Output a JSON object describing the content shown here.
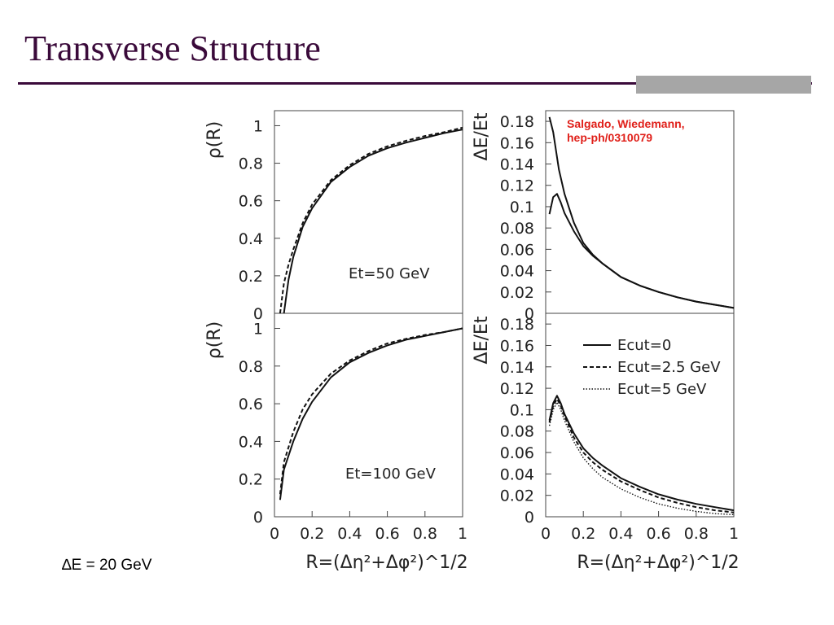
{
  "slide": {
    "title": "Transverse Structure",
    "footnote": "∆E = 20 GeV"
  },
  "chart_data": [
    {
      "type": "line",
      "ylabel": "ρ(R)",
      "xlim": [
        0,
        1
      ],
      "ylim": [
        0,
        1.08
      ],
      "yticks": [
        "0",
        "0.2",
        "0.4",
        "0.6",
        "0.8",
        "1"
      ],
      "annotation": "Et=50 GeV",
      "series": [
        {
          "style": "solid",
          "x": [
            0.05,
            0.075,
            0.1,
            0.15,
            0.2,
            0.3,
            0.4,
            0.5,
            0.6,
            0.7,
            0.8,
            0.9,
            1.0
          ],
          "y": [
            0.0,
            0.18,
            0.3,
            0.46,
            0.56,
            0.7,
            0.78,
            0.84,
            0.88,
            0.91,
            0.935,
            0.96,
            0.98
          ]
        },
        {
          "style": "dashed",
          "x": [
            0.03,
            0.05,
            0.075,
            0.1,
            0.15,
            0.2,
            0.3,
            0.4,
            0.5,
            0.6,
            0.7,
            0.8,
            0.9,
            1.0
          ],
          "y": [
            0.0,
            0.16,
            0.26,
            0.34,
            0.48,
            0.58,
            0.71,
            0.79,
            0.85,
            0.89,
            0.92,
            0.945,
            0.965,
            0.99
          ]
        }
      ]
    },
    {
      "type": "line",
      "ylabel": "ρ(R)",
      "xlabel": "R=(Δη²+Δφ²)^1/2",
      "xlim": [
        0,
        1
      ],
      "ylim": [
        0,
        1.08
      ],
      "xticks": [
        "0",
        "0.2",
        "0.4",
        "0.6",
        "0.8",
        "1"
      ],
      "yticks": [
        "0",
        "0.2",
        "0.4",
        "0.6",
        "0.8",
        "1"
      ],
      "annotation": "Et=100 GeV",
      "series": [
        {
          "style": "solid",
          "x": [
            0.03,
            0.05,
            0.1,
            0.15,
            0.2,
            0.3,
            0.4,
            0.5,
            0.6,
            0.7,
            0.8,
            0.9,
            1.0
          ],
          "y": [
            0.09,
            0.25,
            0.4,
            0.52,
            0.61,
            0.74,
            0.82,
            0.87,
            0.91,
            0.94,
            0.96,
            0.98,
            1.0
          ]
        },
        {
          "style": "dashed",
          "x": [
            0.03,
            0.05,
            0.1,
            0.15,
            0.2,
            0.3,
            0.4,
            0.5,
            0.6,
            0.7,
            0.8,
            0.9,
            1.0
          ],
          "y": [
            0.12,
            0.29,
            0.45,
            0.57,
            0.65,
            0.76,
            0.83,
            0.88,
            0.92,
            0.945,
            0.965,
            0.98,
            1.0
          ]
        }
      ]
    },
    {
      "type": "line",
      "ylabel": "ΔE/Et",
      "xlim": [
        0,
        1
      ],
      "ylim": [
        0,
        0.19
      ],
      "yticks": [
        "0",
        "0.02",
        "0.04",
        "0.06",
        "0.08",
        "0.1",
        "0.12",
        "0.14",
        "0.16",
        "0.18"
      ],
      "citation": [
        "Salgado, Wiedemann,",
        "hep-ph/0310079"
      ],
      "series": [
        {
          "style": "solid",
          "x": [
            0.02,
            0.04,
            0.07,
            0.1,
            0.15,
            0.2,
            0.25,
            0.3,
            0.4,
            0.5,
            0.6,
            0.7,
            0.8,
            0.9,
            1.0
          ],
          "y": [
            0.184,
            0.17,
            0.135,
            0.112,
            0.085,
            0.066,
            0.055,
            0.047,
            0.034,
            0.026,
            0.02,
            0.015,
            0.011,
            0.008,
            0.005
          ]
        },
        {
          "style": "solid",
          "x": [
            0.02,
            0.04,
            0.06,
            0.08,
            0.1,
            0.15,
            0.2,
            0.25,
            0.3,
            0.4,
            0.5,
            0.6,
            0.7,
            0.8,
            0.9,
            1.0
          ],
          "y": [
            0.093,
            0.109,
            0.112,
            0.104,
            0.094,
            0.077,
            0.063,
            0.054,
            0.047,
            0.034,
            0.026,
            0.02,
            0.015,
            0.011,
            0.008,
            0.005
          ]
        }
      ]
    },
    {
      "type": "line",
      "ylabel": "ΔE/Et",
      "xlabel": "R=(Δη²+Δφ²)^1/2",
      "xlim": [
        0,
        1
      ],
      "ylim": [
        0,
        0.19
      ],
      "xticks": [
        "0",
        "0.2",
        "0.4",
        "0.6",
        "0.8",
        "1"
      ],
      "yticks": [
        "0",
        "0.02",
        "0.04",
        "0.06",
        "0.08",
        "0.1",
        "0.12",
        "0.14",
        "0.16",
        "0.18"
      ],
      "legend": [
        "Ecut=0",
        "Ecut=2.5 GeV",
        "Ecut=5 GeV"
      ],
      "series": [
        {
          "name": "Ecut=0",
          "style": "solid",
          "x": [
            0.02,
            0.04,
            0.06,
            0.08,
            0.1,
            0.15,
            0.2,
            0.25,
            0.3,
            0.4,
            0.5,
            0.6,
            0.7,
            0.8,
            0.9,
            1.0
          ],
          "y": [
            0.09,
            0.106,
            0.113,
            0.106,
            0.096,
            0.078,
            0.064,
            0.055,
            0.048,
            0.036,
            0.028,
            0.021,
            0.016,
            0.012,
            0.009,
            0.006
          ]
        },
        {
          "name": "Ecut=2.5 GeV",
          "style": "dashed",
          "x": [
            0.02,
            0.04,
            0.06,
            0.08,
            0.1,
            0.15,
            0.2,
            0.25,
            0.3,
            0.4,
            0.5,
            0.6,
            0.7,
            0.8,
            0.9,
            1.0
          ],
          "y": [
            0.088,
            0.104,
            0.11,
            0.104,
            0.094,
            0.074,
            0.06,
            0.051,
            0.044,
            0.033,
            0.025,
            0.018,
            0.013,
            0.009,
            0.006,
            0.004
          ]
        },
        {
          "name": "Ecut=5 GeV",
          "style": "dotted",
          "x": [
            0.02,
            0.04,
            0.06,
            0.08,
            0.1,
            0.15,
            0.2,
            0.25,
            0.3,
            0.4,
            0.5,
            0.6,
            0.7,
            0.8,
            0.9,
            1.0
          ],
          "y": [
            0.085,
            0.1,
            0.107,
            0.1,
            0.09,
            0.07,
            0.055,
            0.045,
            0.037,
            0.026,
            0.018,
            0.012,
            0.008,
            0.005,
            0.003,
            0.002
          ]
        }
      ]
    }
  ]
}
